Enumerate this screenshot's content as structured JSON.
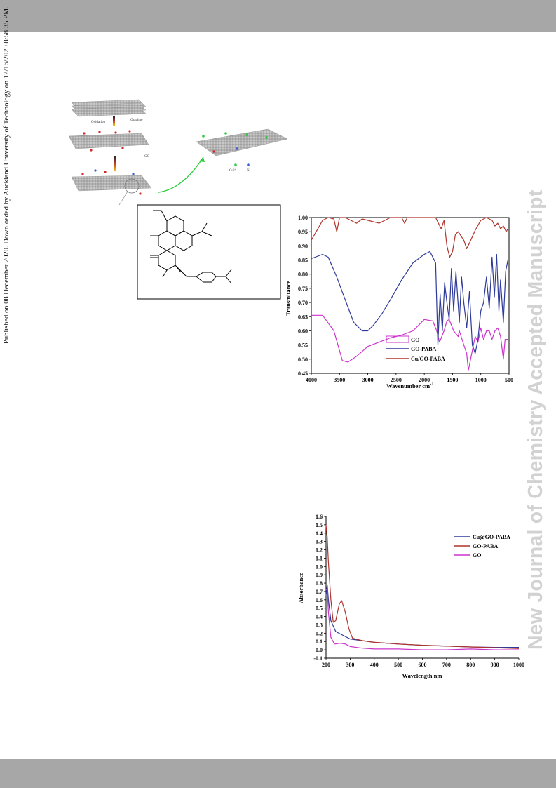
{
  "header": {
    "color": "#a7a7a7"
  },
  "footer": {
    "color": "#a7a7a7"
  },
  "side_note": "Published on 08 December 2020. Downloaded by Auckland University of Technology on 12/16/2020 8:58:35 PM.",
  "watermark": "New Journal of Chemistry Accepted Manuscript",
  "scheme": {
    "labels": {
      "graphite": "Graphite",
      "oxidation": "Oxidation",
      "go": "GO",
      "cu": "Cu²⁺",
      "n": "N"
    }
  },
  "chart_data": [
    {
      "type": "line",
      "xlabel": "Wavenumber cm",
      "xlabel_sup": "-1",
      "ylabel": "Transmitance",
      "xlim": [
        4000,
        500
      ],
      "ylim": [
        0.45,
        1.0
      ],
      "x_ticks": [
        "4000",
        "3500",
        "3000",
        "2500",
        "2000",
        "1500",
        "1000",
        "500"
      ],
      "y_ticks": [
        "1.00",
        "0.95",
        "0.90",
        "0.85",
        "0.80",
        "0.75",
        "0.70",
        "0.65",
        "0.60",
        "0.55",
        "0.50",
        "0.45"
      ],
      "legend_position": "lower-left",
      "series": [
        {
          "name": "GO",
          "color": "#cc33cc",
          "points": [
            [
              4000,
              0.655
            ],
            [
              3800,
              0.655
            ],
            [
              3600,
              0.6
            ],
            [
              3450,
              0.495
            ],
            [
              3350,
              0.49
            ],
            [
              3200,
              0.51
            ],
            [
              3000,
              0.545
            ],
            [
              2800,
              0.56
            ],
            [
              2600,
              0.575
            ],
            [
              2400,
              0.585
            ],
            [
              2200,
              0.6
            ],
            [
              2000,
              0.64
            ],
            [
              1850,
              0.635
            ],
            [
              1780,
              0.6
            ],
            [
              1730,
              0.56
            ],
            [
              1650,
              0.6
            ],
            [
              1600,
              0.635
            ],
            [
              1560,
              0.64
            ],
            [
              1480,
              0.6
            ],
            [
              1400,
              0.58
            ],
            [
              1380,
              0.6
            ],
            [
              1300,
              0.55
            ],
            [
              1250,
              0.52
            ],
            [
              1220,
              0.46
            ],
            [
              1180,
              0.5
            ],
            [
              1100,
              0.58
            ],
            [
              1050,
              0.56
            ],
            [
              1000,
              0.61
            ],
            [
              950,
              0.57
            ],
            [
              900,
              0.6
            ],
            [
              850,
              0.6
            ],
            [
              800,
              0.57
            ],
            [
              750,
              0.6
            ],
            [
              700,
              0.61
            ],
            [
              650,
              0.58
            ],
            [
              600,
              0.5
            ],
            [
              570,
              0.57
            ],
            [
              520,
              0.57
            ]
          ]
        },
        {
          "name": "GO-PABA",
          "color": "#2e3a9a",
          "points": [
            [
              4000,
              0.855
            ],
            [
              3800,
              0.87
            ],
            [
              3700,
              0.86
            ],
            [
              3550,
              0.79
            ],
            [
              3400,
              0.71
            ],
            [
              3250,
              0.63
            ],
            [
              3100,
              0.6
            ],
            [
              3000,
              0.6
            ],
            [
              2900,
              0.62
            ],
            [
              2750,
              0.66
            ],
            [
              2600,
              0.71
            ],
            [
              2400,
              0.78
            ],
            [
              2200,
              0.84
            ],
            [
              2000,
              0.87
            ],
            [
              1900,
              0.88
            ],
            [
              1800,
              0.84
            ],
            [
              1760,
              0.55
            ],
            [
              1720,
              0.73
            ],
            [
              1680,
              0.6
            ],
            [
              1640,
              0.77
            ],
            [
              1600,
              0.7
            ],
            [
              1560,
              0.64
            ],
            [
              1520,
              0.82
            ],
            [
              1480,
              0.67
            ],
            [
              1440,
              0.81
            ],
            [
              1380,
              0.63
            ],
            [
              1340,
              0.79
            ],
            [
              1300,
              0.7
            ],
            [
              1250,
              0.61
            ],
            [
              1200,
              0.74
            ],
            [
              1150,
              0.55
            ],
            [
              1100,
              0.52
            ],
            [
              1050,
              0.57
            ],
            [
              1000,
              0.67
            ],
            [
              950,
              0.7
            ],
            [
              900,
              0.79
            ],
            [
              850,
              0.68
            ],
            [
              800,
              0.86
            ],
            [
              760,
              0.72
            ],
            [
              720,
              0.87
            ],
            [
              680,
              0.67
            ],
            [
              650,
              0.78
            ],
            [
              600,
              0.63
            ],
            [
              560,
              0.81
            ],
            [
              520,
              0.85
            ]
          ]
        },
        {
          "name": "Cu/GO-PABA",
          "color": "#b0342c",
          "points": [
            [
              4000,
              0.92
            ],
            [
              3900,
              0.955
            ],
            [
              3800,
              0.99
            ],
            [
              3700,
              1.0
            ],
            [
              3600,
              0.995
            ],
            [
              3550,
              0.95
            ],
            [
              3500,
              1.0
            ],
            [
              3400,
              1.0
            ],
            [
              3300,
              0.99
            ],
            [
              3200,
              0.98
            ],
            [
              3100,
              0.995
            ],
            [
              3000,
              0.99
            ],
            [
              2800,
              0.98
            ],
            [
              2600,
              1.0
            ],
            [
              2400,
              1.0
            ],
            [
              2350,
              0.98
            ],
            [
              2300,
              1.0
            ],
            [
              2000,
              1.0
            ],
            [
              1800,
              1.0
            ],
            [
              1750,
              0.98
            ],
            [
              1700,
              0.96
            ],
            [
              1650,
              0.99
            ],
            [
              1600,
              0.9
            ],
            [
              1550,
              0.86
            ],
            [
              1500,
              0.88
            ],
            [
              1450,
              0.94
            ],
            [
              1400,
              0.95
            ],
            [
              1300,
              0.92
            ],
            [
              1250,
              0.89
            ],
            [
              1200,
              0.91
            ],
            [
              1100,
              0.955
            ],
            [
              1000,
              0.99
            ],
            [
              900,
              1.0
            ],
            [
              800,
              0.99
            ],
            [
              750,
              0.97
            ],
            [
              700,
              0.98
            ],
            [
              650,
              0.96
            ],
            [
              600,
              0.97
            ],
            [
              550,
              0.95
            ],
            [
              520,
              0.96
            ]
          ]
        }
      ]
    },
    {
      "type": "line",
      "xlabel": "Wavelength nm",
      "ylabel": "Absorbance",
      "xlim": [
        200,
        1000
      ],
      "ylim": [
        -0.1,
        1.6
      ],
      "x_ticks": [
        "200",
        "300",
        "400",
        "500",
        "600",
        "700",
        "800",
        "900",
        "1000"
      ],
      "y_ticks": [
        "1.6",
        "1.5",
        "1.4",
        "1.3",
        "1.2",
        "1.1",
        "1.0",
        "0.9",
        "0.8",
        "0.7",
        "0.6",
        "0.5",
        "0.4",
        "0.3",
        "0.2",
        "0.1",
        "0.0",
        "-0.1"
      ],
      "legend_position": "top-right",
      "series": [
        {
          "name": "Cu@GO-PABA",
          "color": "#2e3a9a",
          "points": [
            [
              200,
              0.65
            ],
            [
              205,
              0.78
            ],
            [
              210,
              0.6
            ],
            [
              220,
              0.35
            ],
            [
              240,
              0.22
            ],
            [
              260,
              0.19
            ],
            [
              280,
              0.16
            ],
            [
              300,
              0.13
            ],
            [
              350,
              0.11
            ],
            [
              400,
              0.09
            ],
            [
              500,
              0.07
            ],
            [
              600,
              0.055
            ],
            [
              700,
              0.045
            ],
            [
              800,
              0.035
            ],
            [
              900,
              0.03
            ],
            [
              1000,
              0.03
            ]
          ]
        },
        {
          "name": "GO-PABA",
          "color": "#b0342c",
          "points": [
            [
              200,
              1.5
            ],
            [
              205,
              1.35
            ],
            [
              210,
              1.05
            ],
            [
              220,
              0.6
            ],
            [
              230,
              0.33
            ],
            [
              240,
              0.35
            ],
            [
              255,
              0.55
            ],
            [
              265,
              0.59
            ],
            [
              280,
              0.45
            ],
            [
              295,
              0.25
            ],
            [
              310,
              0.14
            ],
            [
              350,
              0.11
            ],
            [
              400,
              0.09
            ],
            [
              500,
              0.07
            ],
            [
              600,
              0.055
            ],
            [
              700,
              0.045
            ],
            [
              800,
              0.035
            ],
            [
              900,
              0.025
            ],
            [
              1000,
              0.015
            ]
          ]
        },
        {
          "name": "GO",
          "color": "#cc33cc",
          "points": [
            [
              200,
              0.72
            ],
            [
              205,
              0.73
            ],
            [
              210,
              0.45
            ],
            [
              220,
              0.15
            ],
            [
              235,
              0.07
            ],
            [
              260,
              0.08
            ],
            [
              280,
              0.07
            ],
            [
              300,
              0.04
            ],
            [
              350,
              0.02
            ],
            [
              400,
              0.01
            ],
            [
              500,
              0.01
            ],
            [
              600,
              0.0
            ],
            [
              700,
              0.0
            ],
            [
              800,
              0.01
            ],
            [
              900,
              0.0
            ],
            [
              1000,
              0.0
            ]
          ]
        }
      ]
    }
  ]
}
